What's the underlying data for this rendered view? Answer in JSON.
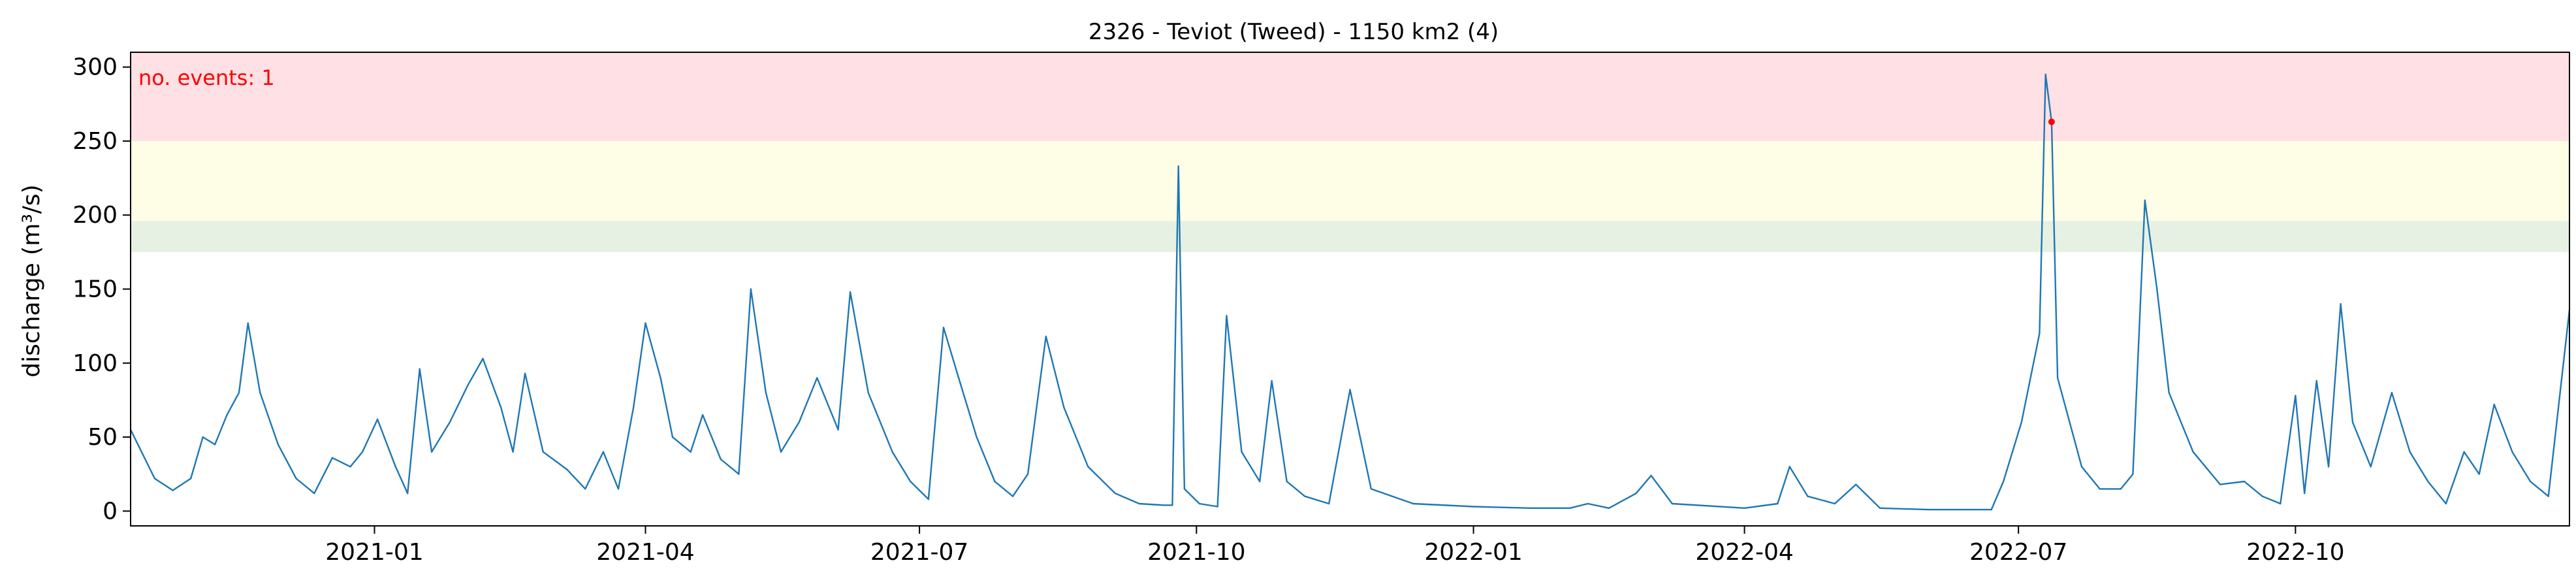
{
  "chart_data": {
    "type": "line",
    "title": "2326 - Teviot (Tweed) - 1150 km2 (4)",
    "xlabel": "",
    "ylabel": "discharge (m³/s)",
    "xlim": [
      "2020-10-12",
      "2022-12-31"
    ],
    "ylim": [
      -10,
      310
    ],
    "grid": false,
    "annotation": "no. events: 1",
    "x_ticks": [
      {
        "date": "2021-01-01",
        "label": "2021-01"
      },
      {
        "date": "2021-04-01",
        "label": "2021-04"
      },
      {
        "date": "2021-07-01",
        "label": "2021-07"
      },
      {
        "date": "2021-10-01",
        "label": "2021-10"
      },
      {
        "date": "2022-01-01",
        "label": "2022-01"
      },
      {
        "date": "2022-04-01",
        "label": "2022-04"
      },
      {
        "date": "2022-07-01",
        "label": "2022-07"
      },
      {
        "date": "2022-10-01",
        "label": "2022-10"
      }
    ],
    "y_ticks": [
      0,
      50,
      100,
      150,
      200,
      250,
      300
    ],
    "threshold_bands": [
      {
        "from": 250,
        "to": 310,
        "color": "#ffe0e4"
      },
      {
        "from": 196,
        "to": 250,
        "color": "#fefee6"
      },
      {
        "from": 175,
        "to": 196,
        "color": "#e6f1e3"
      }
    ],
    "series": [
      {
        "color": "#1f77b4",
        "points": [
          [
            "2020-10-12",
            55
          ],
          [
            "2020-10-20",
            22
          ],
          [
            "2020-10-26",
            14
          ],
          [
            "2020-11-01",
            22
          ],
          [
            "2020-11-05",
            50
          ],
          [
            "2020-11-09",
            45
          ],
          [
            "2020-11-13",
            65
          ],
          [
            "2020-11-17",
            80
          ],
          [
            "2020-11-20",
            127
          ],
          [
            "2020-11-24",
            80
          ],
          [
            "2020-11-30",
            45
          ],
          [
            "2020-12-06",
            22
          ],
          [
            "2020-12-12",
            12
          ],
          [
            "2020-12-18",
            36
          ],
          [
            "2020-12-24",
            30
          ],
          [
            "2020-12-28",
            40
          ],
          [
            "2021-01-02",
            62
          ],
          [
            "2021-01-08",
            30
          ],
          [
            "2021-01-12",
            12
          ],
          [
            "2021-01-16",
            96
          ],
          [
            "2021-01-20",
            40
          ],
          [
            "2021-01-26",
            60
          ],
          [
            "2021-02-01",
            85
          ],
          [
            "2021-02-06",
            103
          ],
          [
            "2021-02-12",
            70
          ],
          [
            "2021-02-16",
            40
          ],
          [
            "2021-02-20",
            93
          ],
          [
            "2021-02-26",
            40
          ],
          [
            "2021-03-06",
            28
          ],
          [
            "2021-03-12",
            15
          ],
          [
            "2021-03-18",
            40
          ],
          [
            "2021-03-23",
            15
          ],
          [
            "2021-03-28",
            70
          ],
          [
            "2021-04-01",
            127
          ],
          [
            "2021-04-06",
            90
          ],
          [
            "2021-04-10",
            50
          ],
          [
            "2021-04-16",
            40
          ],
          [
            "2021-04-20",
            65
          ],
          [
            "2021-04-26",
            35
          ],
          [
            "2021-05-02",
            25
          ],
          [
            "2021-05-06",
            150
          ],
          [
            "2021-05-11",
            80
          ],
          [
            "2021-05-16",
            40
          ],
          [
            "2021-05-22",
            60
          ],
          [
            "2021-05-28",
            90
          ],
          [
            "2021-06-04",
            55
          ],
          [
            "2021-06-08",
            148
          ],
          [
            "2021-06-14",
            80
          ],
          [
            "2021-06-22",
            40
          ],
          [
            "2021-06-28",
            20
          ],
          [
            "2021-07-04",
            8
          ],
          [
            "2021-07-09",
            124
          ],
          [
            "2021-07-14",
            90
          ],
          [
            "2021-07-20",
            50
          ],
          [
            "2021-07-26",
            20
          ],
          [
            "2021-08-01",
            10
          ],
          [
            "2021-08-06",
            25
          ],
          [
            "2021-08-12",
            118
          ],
          [
            "2021-08-18",
            70
          ],
          [
            "2021-08-26",
            30
          ],
          [
            "2021-09-04",
            12
          ],
          [
            "2021-09-12",
            5
          ],
          [
            "2021-09-20",
            4
          ],
          [
            "2021-09-23",
            4
          ],
          [
            "2021-09-25",
            233
          ],
          [
            "2021-09-27",
            15
          ],
          [
            "2021-10-02",
            5
          ],
          [
            "2021-10-08",
            3
          ],
          [
            "2021-10-11",
            132
          ],
          [
            "2021-10-16",
            40
          ],
          [
            "2021-10-22",
            20
          ],
          [
            "2021-10-26",
            88
          ],
          [
            "2021-10-31",
            20
          ],
          [
            "2021-11-06",
            10
          ],
          [
            "2021-11-14",
            5
          ],
          [
            "2021-11-21",
            82
          ],
          [
            "2021-11-28",
            15
          ],
          [
            "2021-12-12",
            5
          ],
          [
            "2022-01-01",
            3
          ],
          [
            "2022-01-20",
            2
          ],
          [
            "2022-02-02",
            2
          ],
          [
            "2022-02-08",
            5
          ],
          [
            "2022-02-15",
            2
          ],
          [
            "2022-02-24",
            12
          ],
          [
            "2022-03-01",
            24
          ],
          [
            "2022-03-08",
            5
          ],
          [
            "2022-04-01",
            2
          ],
          [
            "2022-04-12",
            5
          ],
          [
            "2022-04-16",
            30
          ],
          [
            "2022-04-22",
            10
          ],
          [
            "2022-05-01",
            5
          ],
          [
            "2022-05-08",
            18
          ],
          [
            "2022-05-16",
            2
          ],
          [
            "2022-06-01",
            1
          ],
          [
            "2022-06-15",
            1
          ],
          [
            "2022-06-22",
            1
          ],
          [
            "2022-06-26",
            20
          ],
          [
            "2022-07-02",
            60
          ],
          [
            "2022-07-08",
            120
          ],
          [
            "2022-07-10",
            295
          ],
          [
            "2022-07-12",
            263
          ],
          [
            "2022-07-14",
            90
          ],
          [
            "2022-07-22",
            30
          ],
          [
            "2022-07-28",
            15
          ],
          [
            "2022-08-04",
            15
          ],
          [
            "2022-08-08",
            25
          ],
          [
            "2022-08-12",
            210
          ],
          [
            "2022-08-16",
            150
          ],
          [
            "2022-08-20",
            80
          ],
          [
            "2022-08-28",
            40
          ],
          [
            "2022-09-06",
            18
          ],
          [
            "2022-09-14",
            20
          ],
          [
            "2022-09-20",
            10
          ],
          [
            "2022-09-26",
            5
          ],
          [
            "2022-10-01",
            78
          ],
          [
            "2022-10-04",
            12
          ],
          [
            "2022-10-08",
            88
          ],
          [
            "2022-10-12",
            30
          ],
          [
            "2022-10-16",
            140
          ],
          [
            "2022-10-20",
            60
          ],
          [
            "2022-10-26",
            30
          ],
          [
            "2022-11-02",
            80
          ],
          [
            "2022-11-08",
            40
          ],
          [
            "2022-11-14",
            20
          ],
          [
            "2022-11-20",
            5
          ],
          [
            "2022-11-26",
            40
          ],
          [
            "2022-12-01",
            25
          ],
          [
            "2022-12-06",
            72
          ],
          [
            "2022-12-12",
            40
          ],
          [
            "2022-12-18",
            20
          ],
          [
            "2022-12-24",
            10
          ],
          [
            "2022-12-31",
            136
          ]
        ]
      }
    ],
    "events": [
      {
        "date": "2022-07-12",
        "value": 263,
        "color": "#ff0000"
      }
    ]
  }
}
